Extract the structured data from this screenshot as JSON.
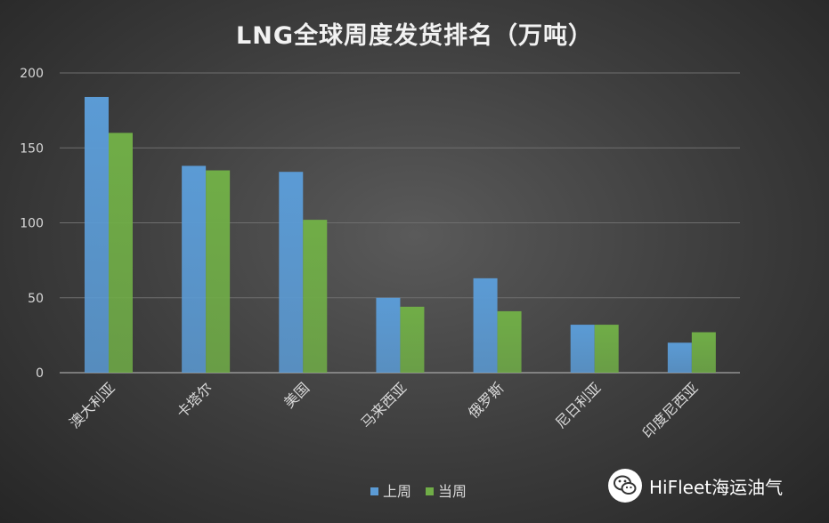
{
  "chart_data": {
    "type": "bar",
    "title": "LNG全球周度发货排名（万吨）",
    "xlabel": "",
    "ylabel": "",
    "categories": [
      "澳大利亚",
      "卡塔尔",
      "美国",
      "马来西亚",
      "俄罗斯",
      "尼日利亚",
      "印度尼西亚"
    ],
    "series": [
      {
        "name": "上周",
        "color": "#5b9bd5",
        "values": [
          184,
          138,
          134,
          50,
          63,
          32,
          20
        ]
      },
      {
        "name": "当周",
        "color": "#70ad47",
        "values": [
          160,
          135,
          102,
          44,
          41,
          32,
          27
        ]
      }
    ],
    "ylim": [
      0,
      200
    ],
    "yticks": [
      0,
      50,
      100,
      150,
      200
    ],
    "grid": true,
    "legend_position": "bottom"
  },
  "watermark": {
    "text": "HiFleet海运油气",
    "icon": "wechat-icon"
  }
}
